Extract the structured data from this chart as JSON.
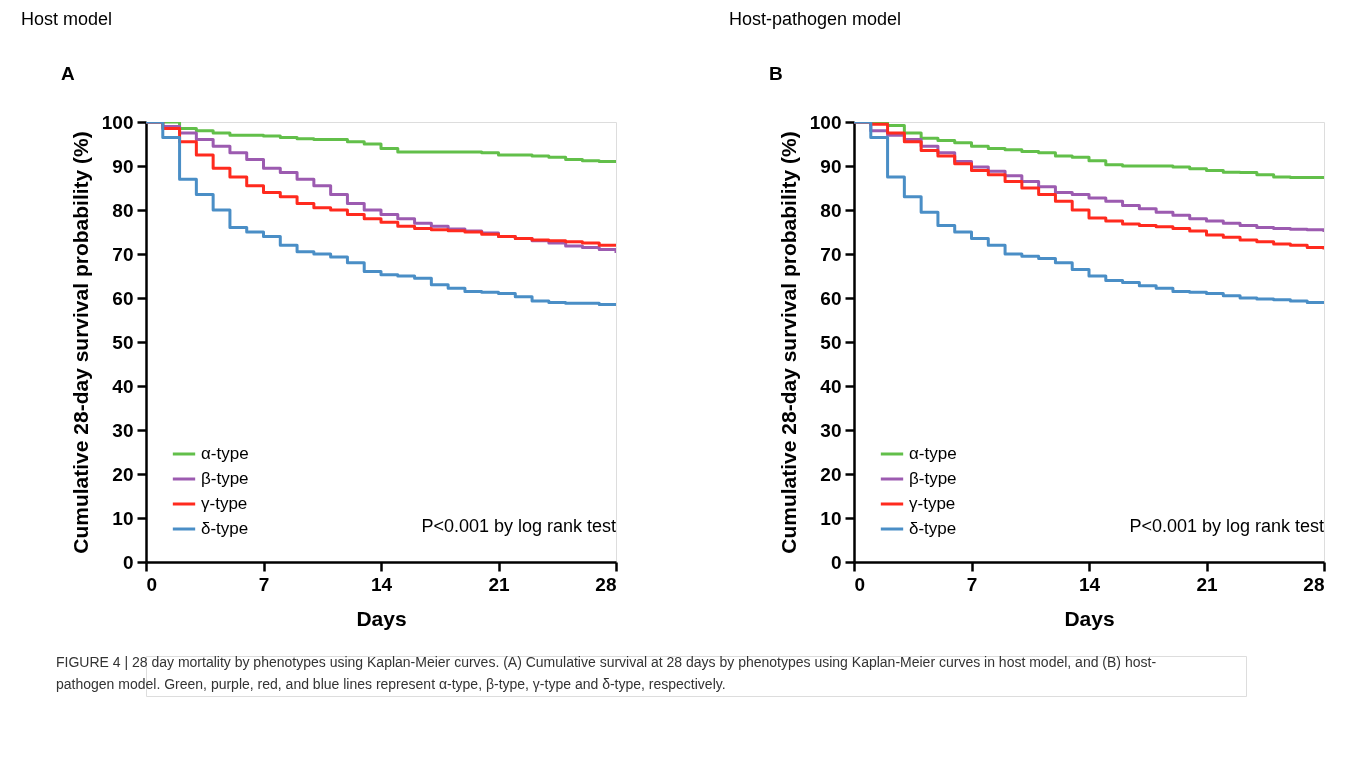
{
  "chart_data": [
    {
      "type": "step",
      "title": "Host model",
      "xlabel": "Days",
      "ylabel": "Cumulative 28-day survival probability (%)",
      "x": [
        0,
        1,
        2,
        3,
        4,
        5,
        6,
        7,
        8,
        9,
        10,
        11,
        12,
        13,
        14,
        15,
        16,
        17,
        18,
        19,
        20,
        21,
        22,
        23,
        24,
        25,
        26,
        27,
        28
      ],
      "xlim": [
        0,
        28
      ],
      "xticks": [
        0,
        7,
        14,
        21,
        28
      ],
      "ylim": [
        0,
        100
      ],
      "yticks": [
        0,
        10,
        20,
        30,
        40,
        50,
        60,
        70,
        80,
        90,
        100
      ],
      "grid": false,
      "legend": "bottom left",
      "line_style": "solid",
      "annotations": [
        "A",
        "P<0.001 by log rank test",
        "FIGURE 4 | 28 day mortality by phenotypes using Kaplan-Meier curves. (A) Cumulative survival at 28 days by phenotypes using Kaplan-Meier curves in host model, and (B) host-pathogen model. Green, purple, red, and blue lines represent α-type, β-type, γ-type and δ-type, respectively."
      ],
      "series": [
        {
          "name": "α-type",
          "color": "#62bf4a",
          "values": [
            100,
            100,
            98.5,
            98,
            97.5,
            97,
            97,
            96.8,
            96.5,
            96.2,
            96,
            96,
            95.5,
            95,
            94,
            93.2,
            93.2,
            93.2,
            93.2,
            93.2,
            93,
            92.5,
            92.5,
            92.3,
            92,
            91.5,
            91.2,
            91,
            91
          ]
        },
        {
          "name": "β-type",
          "color": "#9c5bb0",
          "values": [
            100,
            99,
            97.5,
            96,
            94.5,
            93,
            91.5,
            89.5,
            88.5,
            87,
            85.5,
            83.5,
            81.5,
            80,
            79,
            78,
            77,
            76.3,
            75.7,
            75.2,
            74.8,
            74,
            73.5,
            73,
            72.5,
            71.8,
            71.5,
            71,
            70.2
          ]
        },
        {
          "name": "γ-type",
          "color": "#ff2a1e",
          "values": [
            100,
            98.5,
            95.5,
            92.5,
            89.5,
            87.5,
            85.5,
            84,
            83,
            81.5,
            80.5,
            80,
            79,
            78,
            77.2,
            76.3,
            75.8,
            75.5,
            75.3,
            75,
            74.5,
            74,
            73.5,
            73.2,
            73,
            72.8,
            72.5,
            72,
            71.8
          ]
        },
        {
          "name": "δ-type",
          "color": "#4a8ec6",
          "values": [
            100,
            96.5,
            87,
            83.5,
            80,
            76,
            75,
            74,
            72,
            70.5,
            70,
            69.3,
            68,
            66,
            65.3,
            65,
            64.5,
            63,
            62.2,
            61.5,
            61.3,
            61,
            60.3,
            59.3,
            59,
            58.8,
            58.8,
            58.5,
            58.5
          ]
        }
      ]
    },
    {
      "type": "step",
      "title": "Host-pathogen model",
      "xlabel": "Days",
      "ylabel": "Cumulative 28-day survival probability (%)",
      "x": [
        0,
        1,
        2,
        3,
        4,
        5,
        6,
        7,
        8,
        9,
        10,
        11,
        12,
        13,
        14,
        15,
        16,
        17,
        18,
        19,
        20,
        21,
        22,
        23,
        24,
        25,
        26,
        27,
        28
      ],
      "xlim": [
        0,
        28
      ],
      "xticks": [
        0,
        7,
        14,
        21,
        28
      ],
      "ylim": [
        0,
        100
      ],
      "yticks": [
        0,
        10,
        20,
        30,
        40,
        50,
        60,
        70,
        80,
        90,
        100
      ],
      "grid": false,
      "legend": "bottom left",
      "line_style": "solid",
      "annotations": [
        "B",
        "P<0.001 by log rank test"
      ],
      "series": [
        {
          "name": "α-type",
          "color": "#62bf4a",
          "values": [
            100,
            100,
            99.2,
            97.5,
            96.3,
            95.8,
            95.3,
            94.5,
            94,
            93.7,
            93.3,
            93,
            92.3,
            92,
            91.2,
            90.3,
            90,
            90,
            90,
            89.8,
            89.4,
            89,
            88.6,
            88.5,
            88,
            87.5,
            87.4,
            87.4,
            87.4
          ]
        },
        {
          "name": "β-type",
          "color": "#9c5bb0",
          "values": [
            100,
            98,
            97,
            96,
            94.5,
            93,
            91,
            89.8,
            88.8,
            87.8,
            86.5,
            85.3,
            84,
            83.5,
            82.7,
            82,
            81,
            80.3,
            79.5,
            78.8,
            78,
            77.5,
            77,
            76.5,
            76,
            75.8,
            75.6,
            75.5,
            75
          ]
        },
        {
          "name": "γ-type",
          "color": "#ff2a1e",
          "values": [
            100,
            99.5,
            97.5,
            95.5,
            93.5,
            92.3,
            90.5,
            89,
            88,
            86.5,
            85,
            83.5,
            82,
            80,
            78.2,
            77.5,
            76.8,
            76.5,
            76.2,
            75.8,
            75.2,
            74.3,
            73.8,
            73.2,
            72.8,
            72.3,
            72,
            71.5,
            71
          ]
        },
        {
          "name": "δ-type",
          "color": "#4a8ec6",
          "values": [
            100,
            96.5,
            87.5,
            83,
            79.5,
            76.5,
            75,
            73.5,
            72,
            70,
            69.5,
            69,
            68,
            66.5,
            65,
            64,
            63.5,
            62.8,
            62.2,
            61.5,
            61.3,
            61,
            60.5,
            60,
            59.8,
            59.6,
            59.3,
            59,
            58.8
          ]
        }
      ]
    }
  ]
}
